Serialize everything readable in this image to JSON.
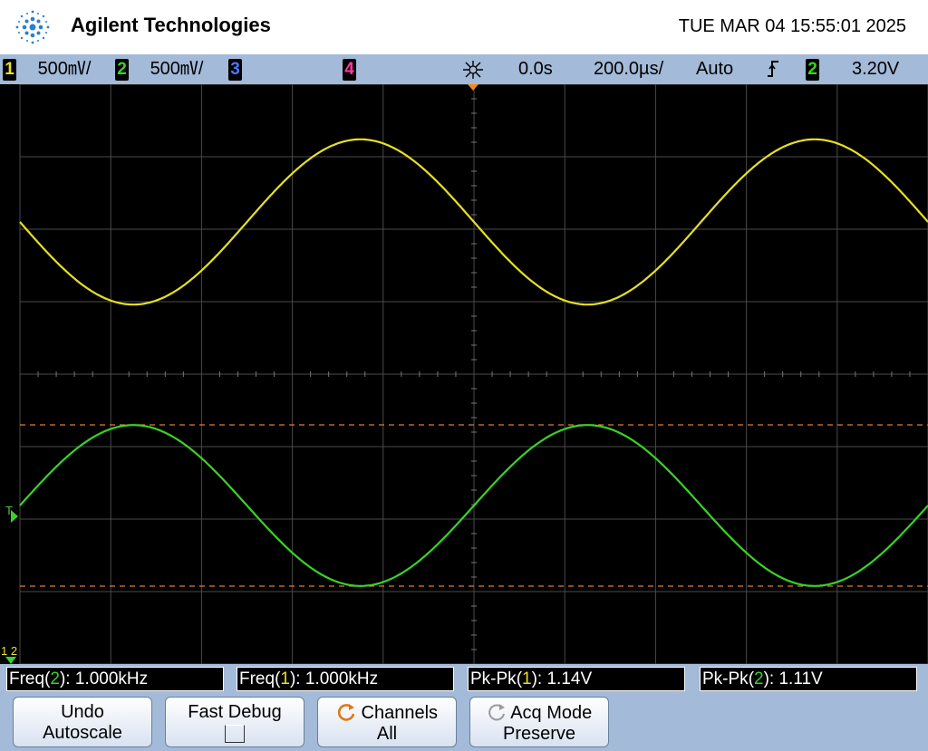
{
  "header": {
    "brand": "Agilent Technologies",
    "datetime": "TUE MAR 04 15:55:01 2025"
  },
  "status": {
    "ch1": {
      "num": "1",
      "scale": "500㎷/",
      "color": "#e6e024"
    },
    "ch2": {
      "num": "2",
      "scale": "500㎷/",
      "color": "#3ad226"
    },
    "ch3": {
      "num": "3",
      "color": "#4a78ff"
    },
    "ch4": {
      "num": "4",
      "color": "#ff3aa0"
    },
    "trigger_icon": "trigger-position-icon",
    "delay": "0.0s",
    "timebase": "200.0µs/",
    "mode": "Auto",
    "slope_icon": "rising-edge-icon",
    "trig_source": "2",
    "trig_level": "3.20V"
  },
  "measurements": [
    {
      "name": "Freq",
      "source": "2",
      "value": "1.000kHz",
      "color": "#3ad226"
    },
    {
      "name": "Freq",
      "source": "1",
      "value": "1.000kHz",
      "color": "#e6e024"
    },
    {
      "name": "Pk-Pk",
      "source": "1",
      "value": "1.14V",
      "color": "#e6e024"
    },
    {
      "name": "Pk-Pk",
      "source": "2",
      "value": "1.11V",
      "color": "#3ad226"
    }
  ],
  "softkeys": [
    {
      "line1": "Undo",
      "line2": "Autoscale"
    },
    {
      "line1": "Fast Debug",
      "line2": ""
    },
    {
      "line1": "Channels",
      "line2": "All",
      "icon": "rotate-knob-icon"
    },
    {
      "line1": "Acq Mode",
      "line2": "Preserve",
      "icon": "rotate-knob-icon"
    }
  ],
  "waveforms": {
    "ch1": {
      "color": "#e6e024",
      "frequency_khz": 1.0,
      "pk_pk_v": 1.14
    },
    "ch2": {
      "color": "#3ad226",
      "frequency_khz": 1.0,
      "pk_pk_v": 1.11
    }
  },
  "markers": {
    "trigger_label": "T",
    "ground_label": "1 2"
  }
}
